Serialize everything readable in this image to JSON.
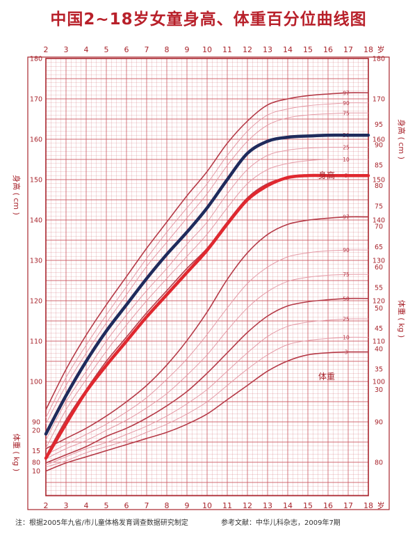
{
  "title": "中国2~18岁女童身高、体重百分位曲线图",
  "footer": {
    "note": "注：根据2005年九省/市儿童体格发育调查数据研究制定",
    "reference": "参考文献：中华儿科杂志，2009年7期"
  },
  "colors": {
    "grid": "#cc5a62",
    "frame": "#a8242c",
    "percentile_line": "#b53a47",
    "pink_band": "#e59aa6",
    "blue_series": "#1f2b5c",
    "red_series": "#e0282f",
    "title": "#b8202a"
  },
  "chart_data": {
    "type": "line",
    "title": "中国2~18岁女童身高、体重百分位曲线图",
    "x_axis": {
      "range": [
        2,
        18
      ],
      "ticks": [
        2,
        3,
        4,
        5,
        6,
        7,
        8,
        9,
        10,
        11,
        12,
        13,
        14,
        15,
        16,
        17,
        18
      ],
      "unit_label": "岁"
    },
    "height_axis": {
      "label": "身高 ( cm )",
      "range": [
        80,
        180
      ],
      "ticks": [
        80,
        90,
        100,
        110,
        120,
        130,
        140,
        150,
        160,
        170,
        180
      ]
    },
    "weight_axis": {
      "label": "体重 ( kg )",
      "range": [
        5,
        95
      ],
      "ticks_left": [
        10,
        15,
        20
      ],
      "ticks_right": [
        30,
        35,
        40,
        45,
        50,
        55,
        60,
        65,
        70,
        75,
        80,
        85,
        90,
        95
      ]
    },
    "height_region_label": "身高",
    "weight_region_label": "体重",
    "height_percentiles": [
      {
        "name": "97",
        "x": [
          2,
          3,
          4,
          5,
          6,
          7,
          8,
          9,
          10,
          11,
          12,
          13,
          14,
          15,
          16,
          17,
          18
        ],
        "y": [
          93,
          103,
          111.5,
          119,
          126,
          133,
          139.5,
          146,
          152,
          159,
          164.5,
          168.5,
          170,
          170.8,
          171.2,
          171.5,
          171.5
        ]
      },
      {
        "name": "90",
        "x": [
          2,
          3,
          4,
          5,
          6,
          7,
          8,
          9,
          10,
          11,
          12,
          13,
          14,
          15,
          16,
          17,
          18
        ],
        "y": [
          91,
          101,
          109,
          116.5,
          123.5,
          130.5,
          137,
          143,
          149,
          156,
          162,
          166,
          167.5,
          168.3,
          168.7,
          169,
          169
        ]
      },
      {
        "name": "75",
        "x": [
          2,
          3,
          4,
          5,
          6,
          7,
          8,
          9,
          10,
          11,
          12,
          13,
          14,
          15,
          16,
          17,
          18
        ],
        "y": [
          89.5,
          99,
          107,
          114.5,
          121.5,
          128.5,
          134.5,
          140.5,
          146.5,
          153.5,
          159.5,
          163.5,
          165.3,
          166,
          166.3,
          166.5,
          166.5
        ]
      },
      {
        "name": "50",
        "x": [
          2,
          3,
          4,
          5,
          6,
          7,
          8,
          9,
          10,
          11,
          12,
          13,
          14,
          15,
          16,
          17,
          18
        ],
        "y": [
          87.5,
          97,
          105,
          112.5,
          119,
          125.5,
          131.5,
          137,
          143,
          150,
          156.5,
          159.5,
          160.5,
          160.8,
          161,
          161,
          161
        ]
      },
      {
        "name": "25",
        "x": [
          2,
          3,
          4,
          5,
          6,
          7,
          8,
          9,
          10,
          11,
          12,
          13,
          14,
          15,
          16,
          17,
          18
        ],
        "y": [
          85.5,
          95,
          102.5,
          110,
          116.5,
          122.5,
          128,
          134,
          139.5,
          146.5,
          152.5,
          156,
          157.3,
          157.8,
          158,
          158,
          158
        ]
      },
      {
        "name": "10",
        "x": [
          2,
          3,
          4,
          5,
          6,
          7,
          8,
          9,
          10,
          11,
          12,
          13,
          14,
          15,
          16,
          17,
          18
        ],
        "y": [
          83.5,
          93,
          100.5,
          107.5,
          114,
          120,
          125.5,
          131,
          136.5,
          143,
          149,
          152.5,
          154,
          154.7,
          155,
          155,
          155
        ]
      },
      {
        "name": "3",
        "x": [
          2,
          3,
          4,
          5,
          6,
          7,
          8,
          9,
          10,
          11,
          12,
          13,
          14,
          15,
          16,
          17,
          18
        ],
        "y": [
          81.5,
          90.5,
          98,
          105,
          111,
          117,
          122.5,
          128,
          133,
          139.5,
          145.5,
          149,
          150.5,
          151,
          151,
          151,
          151
        ]
      }
    ],
    "weight_percentiles": [
      {
        "name": "97",
        "x": [
          2,
          3,
          4,
          5,
          6,
          7,
          8,
          9,
          10,
          11,
          12,
          13,
          14,
          15,
          16,
          17,
          18
        ],
        "y": [
          15.5,
          18,
          20.5,
          23.5,
          27,
          31,
          36,
          42,
          49,
          57,
          63.5,
          68,
          70.5,
          71.5,
          72,
          72.3,
          72.3
        ]
      },
      {
        "name": "90",
        "x": [
          2,
          3,
          4,
          5,
          6,
          7,
          8,
          9,
          10,
          11,
          12,
          13,
          14,
          15,
          16,
          17,
          18
        ],
        "y": [
          14,
          16.5,
          19,
          21.5,
          24.5,
          28,
          32.5,
          37.5,
          43.5,
          50,
          56,
          60,
          62.5,
          63.5,
          64,
          64.2,
          64.2
        ]
      },
      {
        "name": "75",
        "x": [
          2,
          3,
          4,
          5,
          6,
          7,
          8,
          9,
          10,
          11,
          12,
          13,
          14,
          15,
          16,
          17,
          18
        ],
        "y": [
          13,
          15.5,
          17.5,
          20,
          22.5,
          25.5,
          29,
          33.5,
          38.5,
          44.5,
          50,
          54,
          56.5,
          57.5,
          58,
          58.2,
          58.2
        ]
      },
      {
        "name": "50",
        "x": [
          2,
          3,
          4,
          5,
          6,
          7,
          8,
          9,
          10,
          11,
          12,
          13,
          14,
          15,
          16,
          17,
          18
        ],
        "y": [
          12,
          14,
          16,
          18.5,
          20.5,
          23,
          26,
          29.5,
          34,
          39,
          44,
          48,
          50.5,
          51.5,
          52,
          52.3,
          52.3
        ]
      },
      {
        "name": "25",
        "x": [
          2,
          3,
          4,
          5,
          6,
          7,
          8,
          9,
          10,
          11,
          12,
          13,
          14,
          15,
          16,
          17,
          18
        ],
        "y": [
          11.5,
          13.5,
          15.5,
          17,
          19,
          21,
          23.5,
          26.5,
          30,
          34.5,
          39,
          43,
          45.5,
          46.5,
          47,
          47.3,
          47.3
        ]
      },
      {
        "name": "10",
        "x": [
          2,
          3,
          4,
          5,
          6,
          7,
          8,
          9,
          10,
          11,
          12,
          13,
          14,
          15,
          16,
          17,
          18
        ],
        "y": [
          11,
          12.5,
          14.5,
          16,
          17.5,
          19.5,
          21.5,
          24,
          27,
          31,
          35,
          38.5,
          41,
          42,
          42.5,
          42.8,
          42.8
        ]
      },
      {
        "name": "3",
        "x": [
          2,
          3,
          4,
          5,
          6,
          7,
          8,
          9,
          10,
          11,
          12,
          13,
          14,
          15,
          16,
          17,
          18
        ],
        "y": [
          10,
          12,
          13.5,
          15,
          16.5,
          18,
          19.5,
          21.5,
          24,
          27.5,
          31,
          34.5,
          37,
          38.5,
          39,
          39.2,
          39.2
        ]
      }
    ],
    "highlight_series": [
      {
        "color": "#1f2b5c",
        "x": [
          2,
          3,
          4,
          5,
          6,
          7,
          8,
          9,
          10,
          11,
          12,
          13,
          14,
          15,
          16,
          17,
          18
        ],
        "y": [
          87,
          96.5,
          105,
          112.5,
          119,
          125.5,
          131.5,
          137,
          143,
          150,
          156.5,
          159.5,
          160.5,
          160.8,
          161,
          161,
          161
        ]
      },
      {
        "color": "#e0282f",
        "x": [
          2,
          3,
          4,
          5,
          6,
          7,
          8,
          9,
          10,
          11,
          12,
          13,
          14,
          15,
          16,
          17,
          18
        ],
        "y": [
          81,
          89.5,
          97.5,
          104,
          110,
          116,
          121.5,
          127,
          132.5,
          139,
          145,
          148.5,
          150.5,
          151,
          151,
          151,
          151
        ]
      }
    ],
    "grid": true
  }
}
